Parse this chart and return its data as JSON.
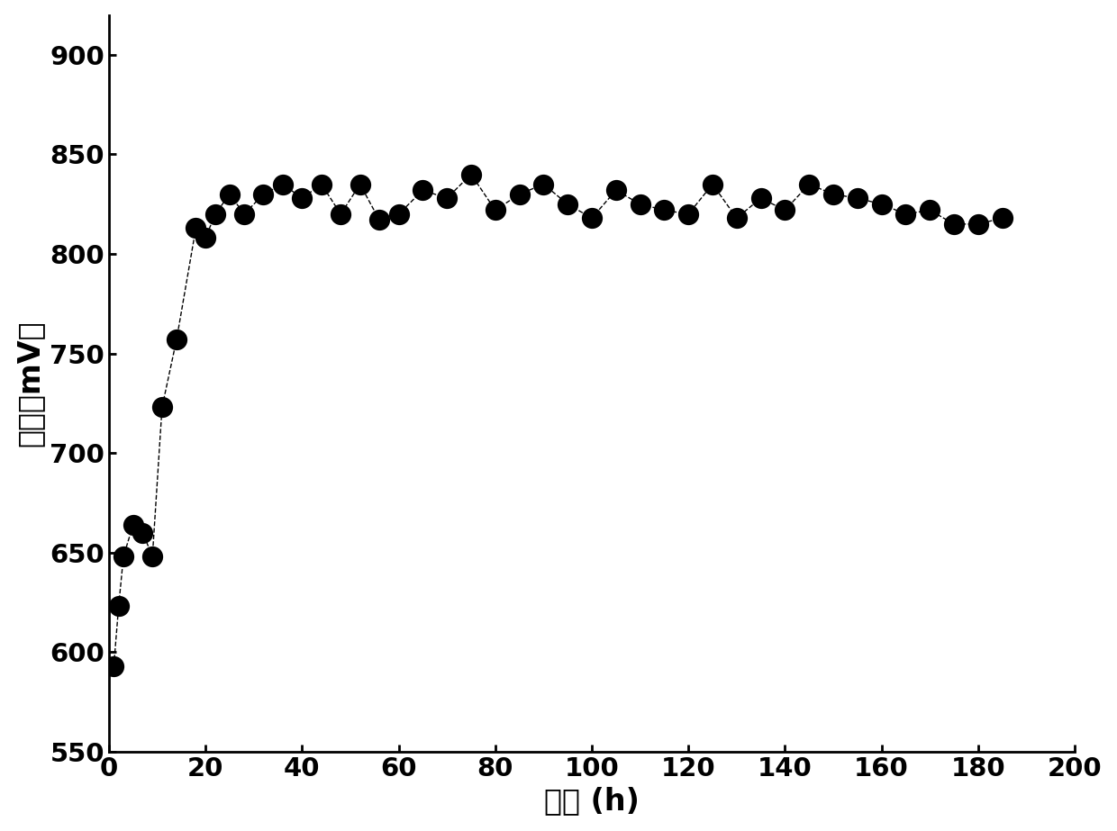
{
  "x": [
    1,
    2,
    3,
    5,
    7,
    9,
    11,
    14,
    18,
    20,
    22,
    25,
    28,
    32,
    36,
    40,
    44,
    48,
    52,
    56,
    60,
    65,
    70,
    75,
    80,
    85,
    90,
    95,
    100,
    105,
    110,
    115,
    120,
    125,
    130,
    135,
    140,
    145,
    150,
    155,
    160,
    165,
    170,
    175,
    180,
    185
  ],
  "y": [
    593,
    623,
    648,
    664,
    660,
    648,
    723,
    757,
    813,
    808,
    820,
    830,
    820,
    830,
    835,
    828,
    835,
    820,
    835,
    817,
    820,
    832,
    828,
    840,
    822,
    830,
    835,
    825,
    818,
    832,
    825,
    822,
    820,
    835,
    818,
    828,
    822,
    835,
    830,
    828,
    825,
    820,
    822,
    815,
    815,
    818
  ],
  "marker_size": 280,
  "marker_color": "#000000",
  "line_style": "--",
  "line_color": "#000000",
  "line_width": 1.0,
  "xlabel": "时间 (h)",
  "ylabel": "电压（mV）",
  "xlim": [
    0,
    200
  ],
  "ylim": [
    550,
    920
  ],
  "xticks": [
    0,
    20,
    40,
    60,
    80,
    100,
    120,
    140,
    160,
    180,
    200
  ],
  "yticks": [
    550,
    600,
    650,
    700,
    750,
    800,
    850,
    900
  ],
  "xlabel_fontsize": 24,
  "ylabel_fontsize": 24,
  "tick_fontsize": 21,
  "background_color": "#ffffff",
  "spine_linewidth": 2.0
}
